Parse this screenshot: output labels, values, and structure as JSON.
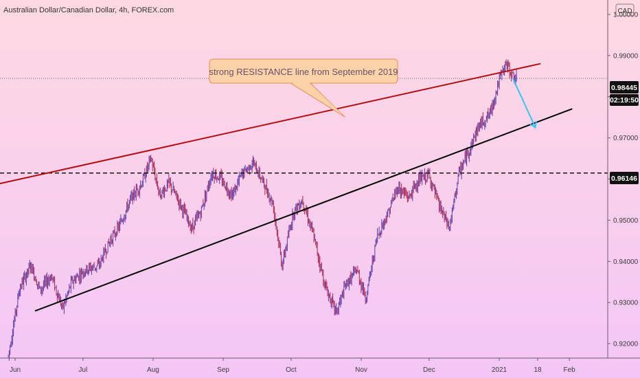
{
  "header": {
    "symbol_title": "Australian Dollar/Canadian Dollar, 4h, FOREX.com"
  },
  "currency_label": "CAD",
  "annotation": {
    "text": "strong RESISTANCE line from September 2019"
  },
  "price_badge": {
    "value": "0.98445",
    "countdown": "02:19:50"
  },
  "level_badge": {
    "value": "0.96146"
  },
  "colors": {
    "background_top": "#ffd9e2",
    "background_bottom": "#f3c6f6",
    "resistance_line": "#b30d12",
    "support_line": "#000000",
    "arrow": "#33c6f5",
    "candles": "#7a2a9a",
    "callout_fill": "#fcd3a9",
    "callout_stroke": "#e88a55"
  },
  "chart_data": {
    "type": "line",
    "title": "Australian Dollar/Canadian Dollar, 4h, FOREX.com",
    "instrument": "AUDCAD",
    "timeframe": "4h",
    "currency": "CAD",
    "x_labels": [
      "Jun",
      "Jul",
      "Aug",
      "Sep",
      "Oct",
      "Nov",
      "Dec",
      "2021",
      "18",
      "Feb"
    ],
    "y_ticks": [
      "1.00000",
      "0.99000",
      "0.98000",
      "0.97000",
      "0.96000",
      "0.95000",
      "0.94000",
      "0.93000",
      "0.92000"
    ],
    "ylim": [
      0.9165,
      1.0035
    ],
    "series": [
      {
        "x": [
          "2020-05-29",
          "2020-06-03",
          "2020-06-08",
          "2020-06-12",
          "2020-06-17",
          "2020-06-22",
          "2020-06-26",
          "2020-07-02",
          "2020-07-08",
          "2020-07-13",
          "2020-07-17",
          "2020-07-22",
          "2020-07-27",
          "2020-07-31",
          "2020-08-04",
          "2020-08-08",
          "2020-08-13",
          "2020-08-18",
          "2020-08-22",
          "2020-08-27",
          "2020-08-31",
          "2020-09-05",
          "2020-09-09",
          "2020-09-14",
          "2020-09-18",
          "2020-09-23",
          "2020-09-27",
          "2020-10-02",
          "2020-10-06",
          "2020-10-11",
          "2020-10-16",
          "2020-10-21",
          "2020-10-25",
          "2020-10-30",
          "2020-11-03",
          "2020-11-08",
          "2020-11-13",
          "2020-11-17",
          "2020-11-22",
          "2020-11-26",
          "2020-12-01",
          "2020-12-05",
          "2020-12-10",
          "2020-12-14",
          "2020-12-19",
          "2020-12-23",
          "2020-12-28",
          "2021-01-01",
          "2021-01-04",
          "2021-01-07",
          "2021-01-09"
        ],
        "y": [
          0.917,
          0.9335,
          0.939,
          0.933,
          0.9365,
          0.9285,
          0.935,
          0.938,
          0.939,
          0.945,
          0.9485,
          0.955,
          0.959,
          0.965,
          0.956,
          0.959,
          0.954,
          0.948,
          0.952,
          0.9615,
          0.96,
          0.956,
          0.961,
          0.964,
          0.96,
          0.954,
          0.939,
          0.952,
          0.955,
          0.946,
          0.934,
          0.9275,
          0.934,
          0.938,
          0.931,
          0.946,
          0.952,
          0.958,
          0.9555,
          0.9595,
          0.961,
          0.954,
          0.948,
          0.961,
          0.9675,
          0.973,
          0.976,
          0.984,
          0.988,
          0.985,
          0.984
        ]
      }
    ],
    "trend_lines": [
      {
        "role": "resistance",
        "from": [
          "2020-05-22",
          0.9585
        ],
        "to": [
          "2021-01-19",
          0.988
        ]
      },
      {
        "role": "support",
        "from": [
          "2020-06-10",
          0.928
        ],
        "to": [
          "2021-02-02",
          0.977
        ]
      }
    ],
    "arrow": {
      "from": [
        "2021-01-07",
        0.9845
      ],
      "to": [
        "2021-01-17",
        0.9725
      ]
    },
    "horizontal_levels": [
      {
        "value": 0.96146,
        "style": "dashed"
      },
      {
        "value": 0.98445,
        "style": "dotted"
      }
    ],
    "grid": false
  }
}
